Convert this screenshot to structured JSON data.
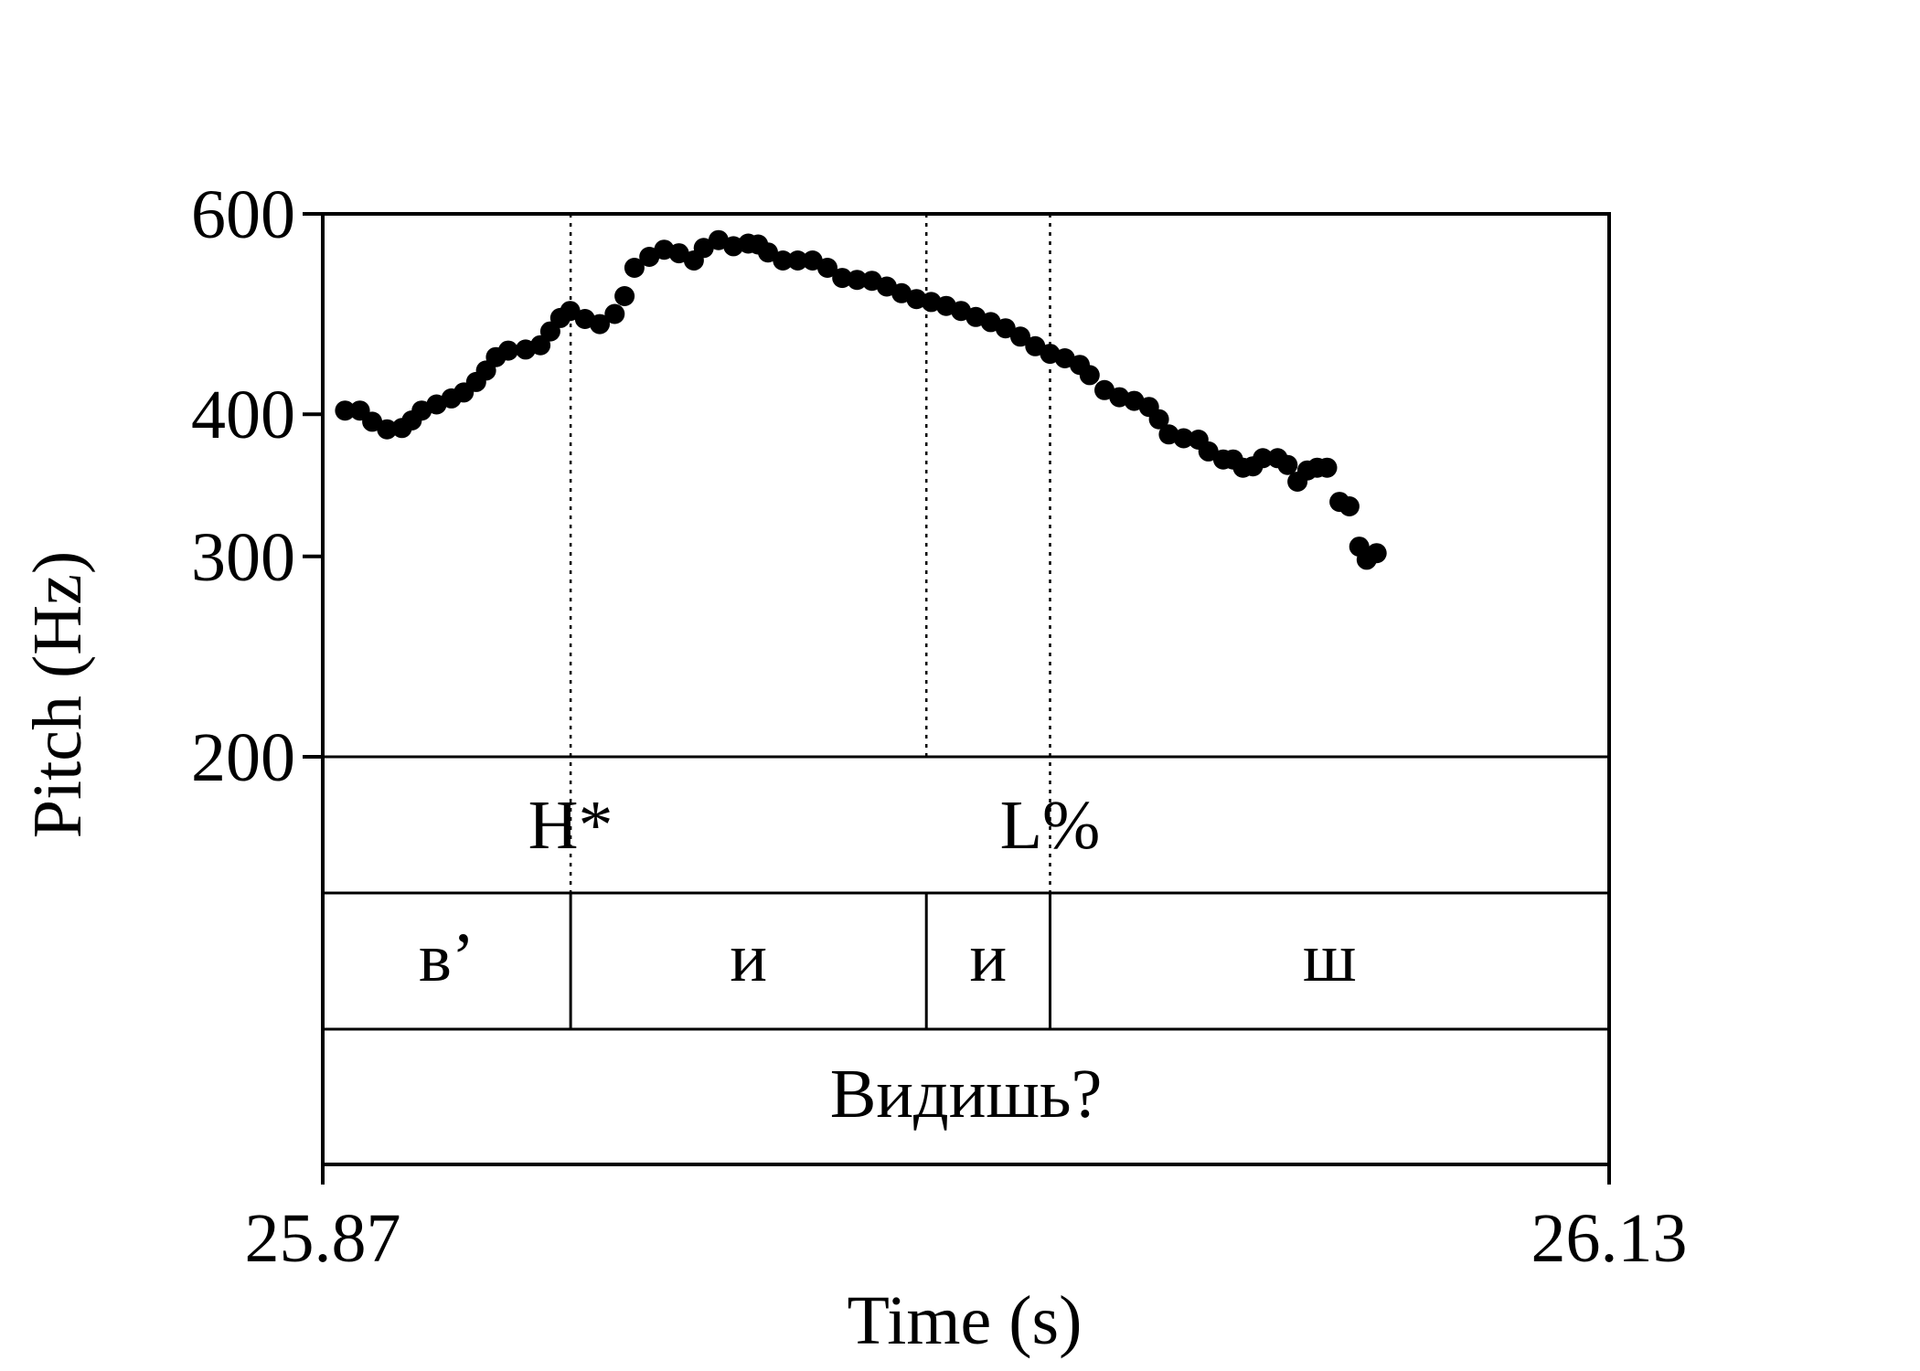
{
  "chart_data": {
    "type": "scatter",
    "xlabel": "Time (s)",
    "ylabel": "Pitch (Hz)",
    "xlim": [
      25.87,
      26.13
    ],
    "ylim": [
      200,
      600
    ],
    "y_scale": "log",
    "x_ticks": [
      "25.87",
      "26.13"
    ],
    "y_ticks": [
      {
        "value": 600,
        "label": "600"
      },
      {
        "value": 400,
        "label": "400"
      },
      {
        "value": 300,
        "label": "300"
      },
      {
        "value": 200,
        "label": "200"
      }
    ],
    "pitch_points": [
      [
        25.8745,
        403
      ],
      [
        25.8775,
        403
      ],
      [
        25.88,
        394
      ],
      [
        25.883,
        388
      ],
      [
        25.886,
        389
      ],
      [
        25.888,
        395
      ],
      [
        25.89,
        403
      ],
      [
        25.893,
        408
      ],
      [
        25.896,
        413
      ],
      [
        25.8985,
        418
      ],
      [
        25.901,
        427
      ],
      [
        25.903,
        437
      ],
      [
        25.905,
        449
      ],
      [
        25.9075,
        455
      ],
      [
        25.911,
        456
      ],
      [
        25.914,
        460
      ],
      [
        25.916,
        473
      ],
      [
        25.918,
        486
      ],
      [
        25.92,
        493
      ],
      [
        25.923,
        485
      ],
      [
        25.926,
        480
      ],
      [
        25.929,
        490
      ],
      [
        25.931,
        508
      ],
      [
        25.933,
        538
      ],
      [
        25.936,
        550
      ],
      [
        25.939,
        558
      ],
      [
        25.942,
        554
      ],
      [
        25.945,
        546
      ],
      [
        25.947,
        560
      ],
      [
        25.95,
        569
      ],
      [
        25.953,
        562
      ],
      [
        25.956,
        565
      ],
      [
        25.958,
        564
      ],
      [
        25.96,
        555
      ],
      [
        25.963,
        546
      ],
      [
        25.966,
        546
      ],
      [
        25.969,
        546
      ],
      [
        25.972,
        538
      ],
      [
        25.975,
        527
      ],
      [
        25.978,
        525
      ],
      [
        25.981,
        524
      ],
      [
        25.984,
        518
      ],
      [
        25.987,
        511
      ],
      [
        25.99,
        505
      ],
      [
        25.993,
        502
      ],
      [
        25.996,
        498
      ],
      [
        25.999,
        493
      ],
      [
        26.002,
        487
      ],
      [
        26.005,
        482
      ],
      [
        26.008,
        476
      ],
      [
        26.011,
        468
      ],
      [
        26.014,
        459
      ],
      [
        26.017,
        452
      ],
      [
        26.02,
        448
      ],
      [
        26.023,
        442
      ],
      [
        26.025,
        433
      ],
      [
        26.028,
        420
      ],
      [
        26.031,
        414
      ],
      [
        26.034,
        411
      ],
      [
        26.037,
        406
      ],
      [
        26.039,
        396
      ],
      [
        26.041,
        384
      ],
      [
        26.044,
        381
      ],
      [
        26.047,
        380
      ],
      [
        26.049,
        371
      ],
      [
        26.052,
        365
      ],
      [
        26.054,
        365
      ],
      [
        26.056,
        359
      ],
      [
        26.058,
        360
      ],
      [
        26.06,
        366
      ],
      [
        26.063,
        366
      ],
      [
        26.065,
        361
      ],
      [
        26.067,
        349
      ],
      [
        26.069,
        357
      ],
      [
        26.071,
        359
      ],
      [
        26.073,
        359
      ],
      [
        26.0755,
        335
      ],
      [
        26.0775,
        332
      ],
      [
        26.0795,
        306
      ],
      [
        26.081,
        298
      ],
      [
        26.083,
        302
      ]
    ],
    "tone_tier": {
      "boundaries": [
        25.9201,
        26.017
      ],
      "labels": [
        {
          "text": "H*",
          "t": 25.9201
        },
        {
          "text": "L%",
          "t": 26.017
        }
      ]
    },
    "segment_tier": {
      "boundaries": [
        25.87,
        25.9201,
        25.992,
        26.017,
        26.13
      ],
      "labels": [
        "в’",
        "и",
        "и",
        "ш"
      ]
    },
    "word_tier": {
      "boundaries": [
        25.87,
        26.13
      ],
      "labels": [
        "Видишь?"
      ]
    },
    "guide_lines": [
      25.9201,
      25.992,
      26.017
    ],
    "colors": {
      "points": "#000000",
      "axes": "#000000",
      "background": "#ffffff"
    }
  }
}
